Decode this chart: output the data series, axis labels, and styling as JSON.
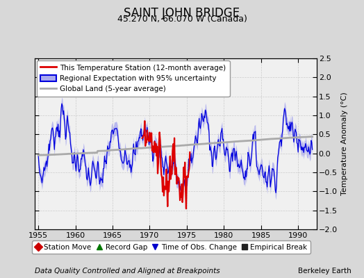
{
  "title": "SAINT JOHN BRIDGE",
  "subtitle": "45.270 N, 66.070 W (Canada)",
  "ylabel": "Temperature Anomaly (°C)",
  "footer_left": "Data Quality Controlled and Aligned at Breakpoints",
  "footer_right": "Berkeley Earth",
  "xlim": [
    1954.5,
    1992.5
  ],
  "ylim": [
    -2.0,
    2.5
  ],
  "yticks": [
    -2,
    -1.5,
    -1,
    -0.5,
    0,
    0.5,
    1,
    1.5,
    2,
    2.5
  ],
  "xticks": [
    1955,
    1960,
    1965,
    1970,
    1975,
    1980,
    1985,
    1990
  ],
  "bg_color": "#d8d8d8",
  "plot_bg_color": "#f0f0f0",
  "regional_line_color": "#0000dd",
  "regional_fill_color": "#aaaaee",
  "station_line_color": "#dd0000",
  "global_line_color": "#aaaaaa",
  "legend1_entries": [
    {
      "label": "This Temperature Station (12-month average)"
    },
    {
      "label": "Regional Expectation with 95% uncertainty"
    },
    {
      "label": "Global Land (5-year average)"
    }
  ],
  "legend2_entries": [
    {
      "label": "Station Move",
      "marker": "D",
      "color": "#cc0000"
    },
    {
      "label": "Record Gap",
      "marker": "^",
      "color": "#007700"
    },
    {
      "label": "Time of Obs. Change",
      "marker": "v",
      "color": "#0000cc"
    },
    {
      "label": "Empirical Break",
      "marker": "s",
      "color": "#222222"
    }
  ],
  "title_fontsize": 12,
  "subtitle_fontsize": 9,
  "ylabel_fontsize": 8,
  "tick_fontsize": 8,
  "legend_fontsize": 7.5,
  "footer_fontsize": 7.5,
  "years_start": 1955,
  "years_end": 1992,
  "station_start": 1969.0,
  "station_end": 1975.5
}
